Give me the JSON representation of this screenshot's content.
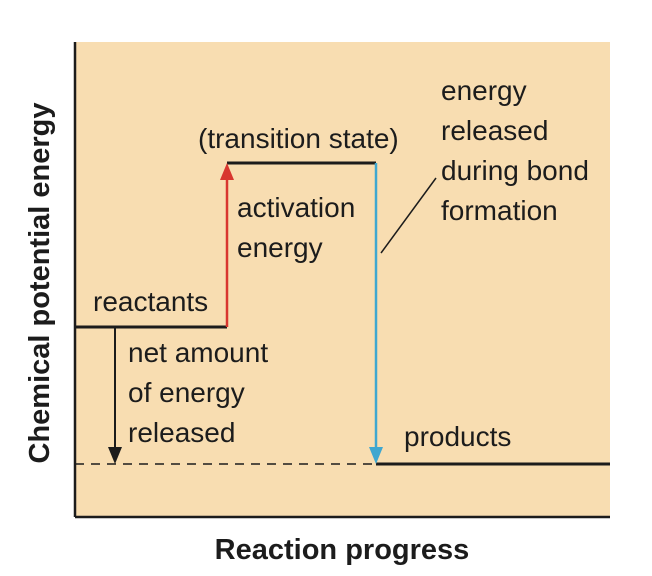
{
  "diagram": {
    "y_axis_label": "Chemical potential energy",
    "x_axis_label": "Reaction progress",
    "labels": {
      "transition_state": "(transition state)",
      "reactants": "reactants",
      "products": "products",
      "activation_energy": [
        "activation",
        "energy"
      ],
      "energy_released_bond_formation": [
        "energy",
        "released",
        "during bond",
        "formation"
      ],
      "net_energy_released": [
        "net amount",
        "of energy",
        "released"
      ]
    },
    "colors": {
      "background": "#f8ddb1",
      "activation_arrow": "#d8362f",
      "bond_formation_arrow": "#3fa7d0",
      "lines": "#1c1c1c"
    }
  }
}
